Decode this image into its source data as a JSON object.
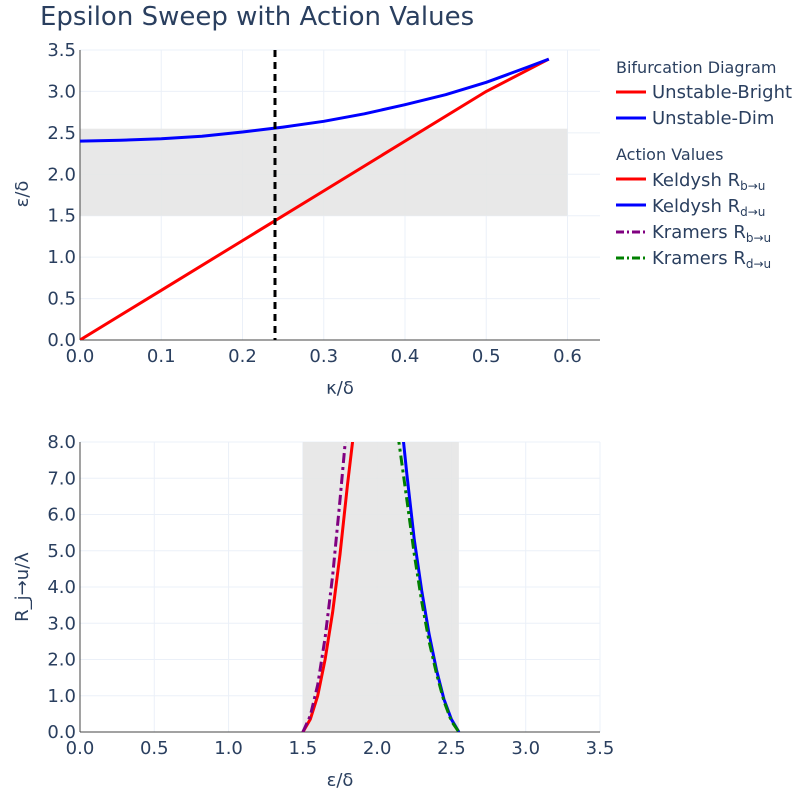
{
  "title": "Epsilon Sweep with Action Values",
  "chart_data": [
    {
      "type": "line",
      "xlabel": "κ/δ",
      "ylabel": "ε/δ",
      "xlim": [
        0,
        0.64
      ],
      "ylim": [
        0,
        3.5
      ],
      "xticks": [
        "0.0",
        "0.1",
        "0.2",
        "0.3",
        "0.4",
        "0.5",
        "0.6"
      ],
      "yticks": [
        "0.0",
        "0.5",
        "1.0",
        "1.5",
        "2.0",
        "2.5",
        "3.0",
        "3.5"
      ],
      "grid": true,
      "shaded_region": {
        "x": [
          0,
          0.6
        ],
        "y": [
          1.5,
          2.55
        ],
        "color": "#e5e5e5"
      },
      "vline": {
        "x": 0.24,
        "color": "#000000",
        "dash": "dashed"
      },
      "series": [
        {
          "name": "Unstable-Bright",
          "color": "#ff0000",
          "x": [
            0,
            0.1,
            0.2,
            0.3,
            0.4,
            0.5,
            0.577
          ],
          "y": [
            0,
            0.6,
            1.2,
            1.8,
            2.4,
            3.0,
            3.39
          ]
        },
        {
          "name": "Unstable-Dim",
          "color": "#0000ff",
          "x": [
            0,
            0.05,
            0.1,
            0.15,
            0.2,
            0.25,
            0.3,
            0.35,
            0.4,
            0.45,
            0.5,
            0.55,
            0.577
          ],
          "y": [
            2.4,
            2.41,
            2.43,
            2.46,
            2.51,
            2.57,
            2.64,
            2.73,
            2.84,
            2.96,
            3.11,
            3.29,
            3.39
          ]
        }
      ]
    },
    {
      "type": "line",
      "xlabel": "ε/δ",
      "ylabel": "R_j→u/λ",
      "xlim": [
        0,
        3.5
      ],
      "ylim": [
        0,
        8
      ],
      "xticks": [
        "0.0",
        "0.5",
        "1.0",
        "1.5",
        "2.0",
        "2.5",
        "3.0",
        "3.5"
      ],
      "yticks": [
        "0.0",
        "1.0",
        "2.0",
        "3.0",
        "4.0",
        "5.0",
        "6.0",
        "7.0",
        "8.0"
      ],
      "grid": true,
      "shaded_region": {
        "x": [
          1.5,
          2.55
        ],
        "y": [
          0,
          8
        ],
        "color": "#e5e5e5"
      },
      "series": [
        {
          "name": "Keldysh R_b→u",
          "color": "#ff0000",
          "dash": "solid",
          "x": [
            1.5,
            1.55,
            1.6,
            1.65,
            1.7,
            1.75,
            1.8,
            1.84
          ],
          "y": [
            0,
            0.35,
            1.0,
            2.0,
            3.3,
            4.9,
            6.8,
            8.2
          ]
        },
        {
          "name": "Keldysh R_d→u",
          "color": "#0000ff",
          "dash": "solid",
          "x": [
            2.17,
            2.2,
            2.25,
            2.3,
            2.35,
            2.4,
            2.45,
            2.5,
            2.55
          ],
          "y": [
            8.3,
            7.1,
            5.3,
            3.9,
            2.7,
            1.7,
            0.9,
            0.35,
            0
          ]
        },
        {
          "name": "Kramers R_b→u",
          "color": "#800080",
          "dash": "dashdot",
          "x": [
            1.5,
            1.55,
            1.6,
            1.65,
            1.7,
            1.75,
            1.79
          ],
          "y": [
            0,
            0.45,
            1.3,
            2.6,
            4.3,
            6.4,
            8.2
          ]
        },
        {
          "name": "Kramers R_d→u",
          "color": "#008000",
          "dash": "dashdot",
          "x": [
            2.14,
            2.2,
            2.25,
            2.3,
            2.35,
            2.4,
            2.45,
            2.5,
            2.55
          ],
          "y": [
            8.2,
            6.4,
            4.9,
            3.6,
            2.5,
            1.6,
            0.85,
            0.3,
            0
          ]
        }
      ]
    }
  ],
  "legend": {
    "group1": {
      "title": "Bifurcation Diagram",
      "items": [
        {
          "label": "Unstable-Bright",
          "color": "#ff0000",
          "dash": "solid"
        },
        {
          "label": "Unstable-Dim",
          "color": "#0000ff",
          "dash": "solid"
        }
      ]
    },
    "group2": {
      "title": "Action Values",
      "items": [
        {
          "label": "Keldysh R",
          "sub": "b→u",
          "color": "#ff0000",
          "dash": "solid"
        },
        {
          "label": "Keldysh R",
          "sub": "d→u",
          "color": "#0000ff",
          "dash": "solid"
        },
        {
          "label": "Kramers R",
          "sub": "b→u",
          "color": "#800080",
          "dash": "dashdot"
        },
        {
          "label": "Kramers R",
          "sub": "d→u",
          "color": "#008000",
          "dash": "dashdot"
        }
      ]
    }
  }
}
